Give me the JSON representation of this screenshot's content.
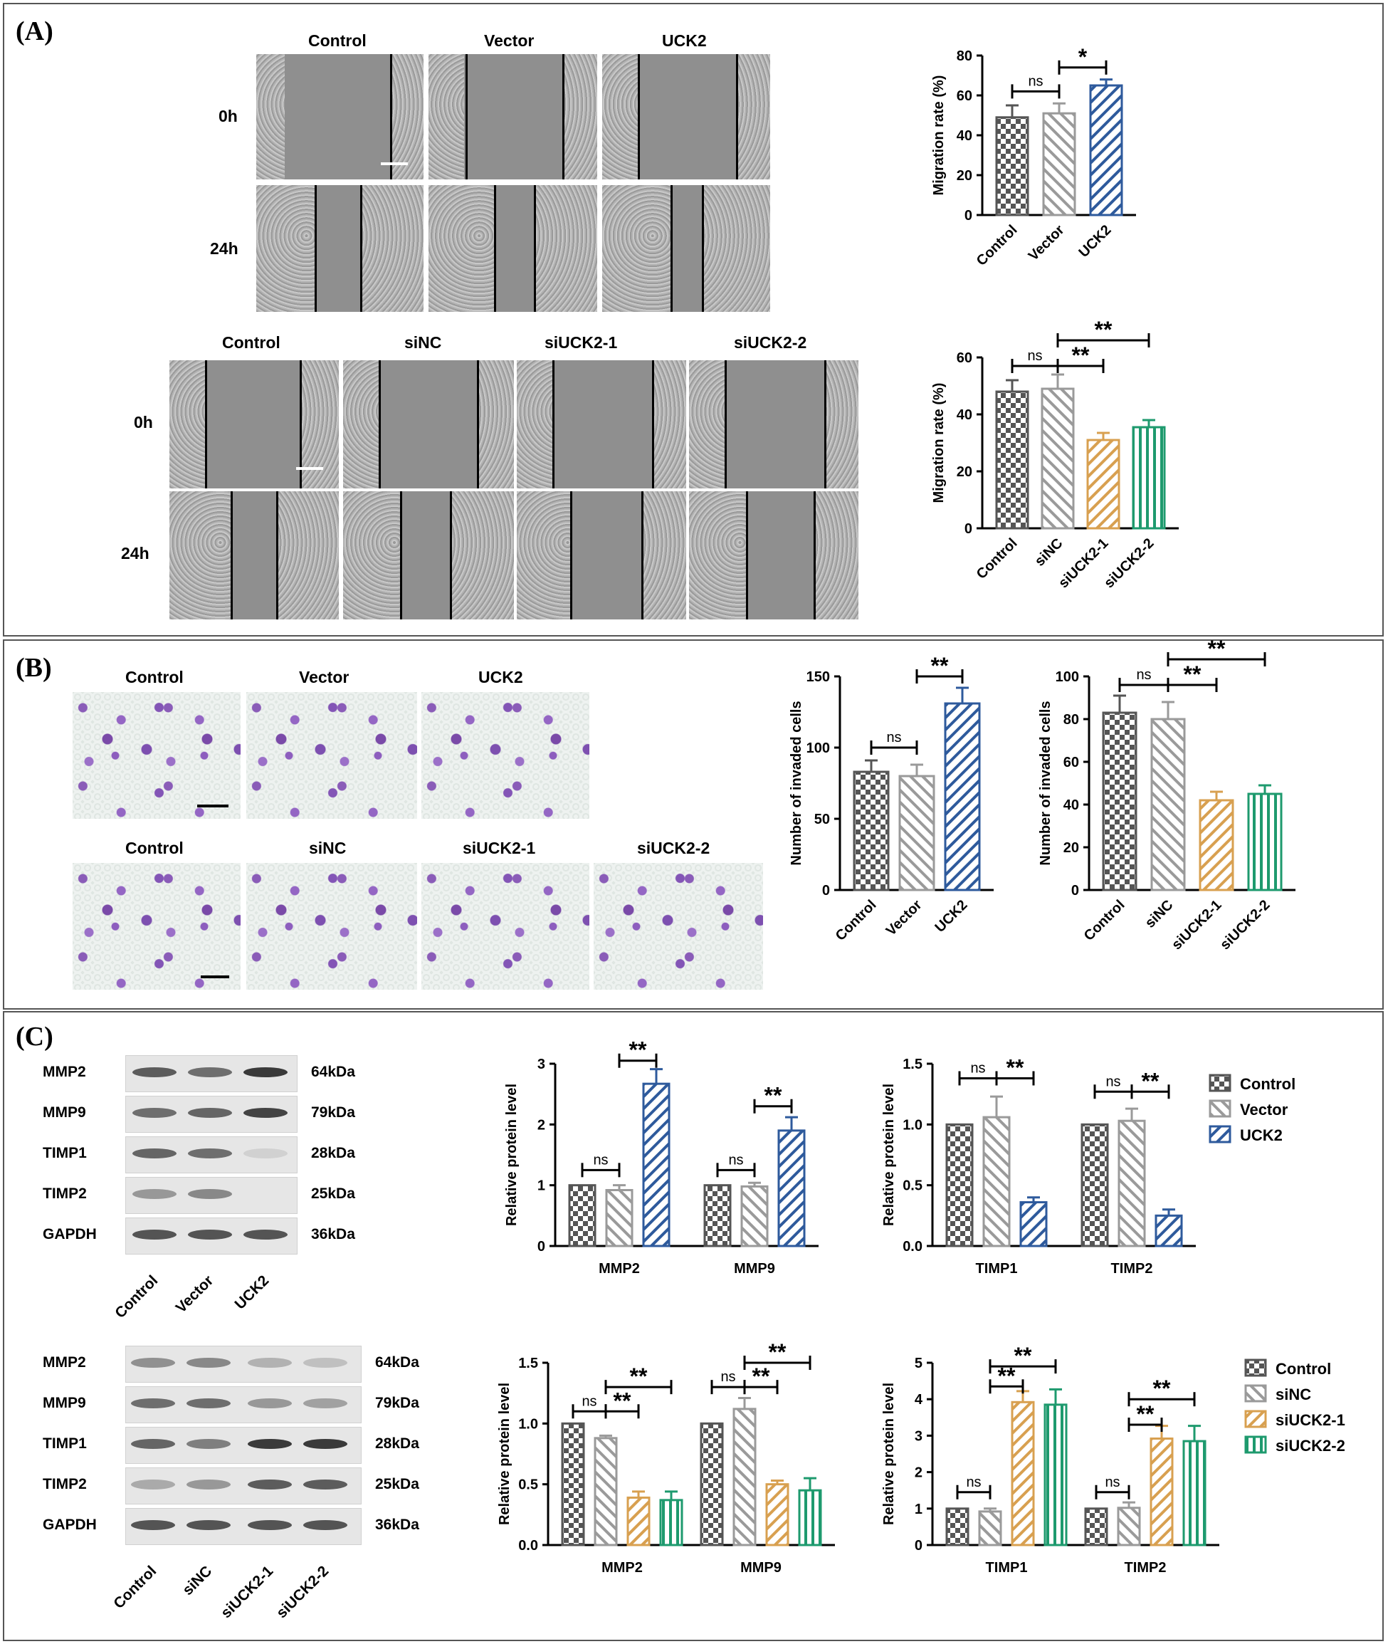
{
  "panels": {
    "a": {
      "label": "(A)",
      "top_cols": [
        "Control",
        "Vector",
        "UCK2"
      ],
      "bottom_cols": [
        "Control",
        "siNC",
        "siUCK2-1",
        "siUCK2-2"
      ],
      "rows": [
        "0h",
        "24h"
      ]
    },
    "b": {
      "label": "(B)",
      "top_cols": [
        "Control",
        "Vector",
        "UCK2"
      ],
      "bottom_cols": [
        "Control",
        "siNC",
        "siUCK2-1",
        "siUCK2-2"
      ]
    },
    "c": {
      "label": "(C)",
      "top_proteins": [
        "MMP2",
        "MMP9",
        "TIMP1",
        "TIMP2",
        "GAPDH"
      ],
      "top_sizes": [
        "64kDa",
        "79kDa",
        "28kDa",
        "25kDa",
        "36kDa"
      ],
      "top_lanes": [
        "Control",
        "Vector",
        "UCK2"
      ],
      "bottom_proteins": [
        "MMP2",
        "MMP9",
        "TIMP1",
        "TIMP2",
        "GAPDH"
      ],
      "bottom_sizes": [
        "64kDa",
        "79kDa",
        "28kDa",
        "25kDa",
        "36kDa"
      ],
      "bottom_lanes": [
        "Control",
        "siNC",
        "siUCK2-1",
        "siUCK2-2"
      ]
    }
  },
  "colors": {
    "control": "#555555",
    "vector": "#9a9a9a",
    "uck2": "#2e5a9c",
    "si1": "#d8a050",
    "si2": "#1e9a6e"
  },
  "chart_data": [
    {
      "id": "a_top",
      "type": "bar",
      "title": "",
      "xlabel": "",
      "ylabel": "Migration rate (%)",
      "ylim": [
        0,
        80
      ],
      "yticks": [
        0,
        20,
        40,
        60,
        80
      ],
      "categories": [
        "Control",
        "Vector",
        "UCK2"
      ],
      "values": [
        49,
        51,
        65
      ],
      "errors": [
        6,
        5,
        3
      ],
      "styles": [
        "control",
        "vector",
        "uck2"
      ],
      "annotations": [
        "ns",
        "*"
      ]
    },
    {
      "id": "a_bottom",
      "type": "bar",
      "title": "",
      "xlabel": "",
      "ylabel": "Migration rate (%)",
      "ylim": [
        0,
        60
      ],
      "yticks": [
        0,
        20,
        40,
        60
      ],
      "categories": [
        "Control",
        "siNC",
        "siUCK2-1",
        "siUCK2-2"
      ],
      "values": [
        48,
        49,
        31,
        35.5
      ],
      "errors": [
        4,
        5,
        2.5,
        2.5
      ],
      "styles": [
        "control",
        "vector",
        "si1",
        "si2"
      ],
      "annotations": [
        "ns",
        "**",
        "**"
      ]
    },
    {
      "id": "b_left",
      "type": "bar",
      "title": "",
      "xlabel": "",
      "ylabel": "Number of invaded cells",
      "ylim": [
        0,
        150
      ],
      "yticks": [
        0,
        50,
        100,
        150
      ],
      "categories": [
        "Control",
        "Vector",
        "UCK2"
      ],
      "values": [
        83,
        80,
        131
      ],
      "errors": [
        8,
        8,
        11
      ],
      "styles": [
        "control",
        "vector",
        "uck2"
      ],
      "annotations": [
        "ns",
        "**"
      ]
    },
    {
      "id": "b_right",
      "type": "bar",
      "title": "",
      "xlabel": "",
      "ylabel": "Number of invaded cells",
      "ylim": [
        0,
        100
      ],
      "yticks": [
        0,
        20,
        40,
        60,
        80,
        100
      ],
      "categories": [
        "Control",
        "siNC",
        "siUCK2-1",
        "siUCK2-2"
      ],
      "values": [
        83,
        80,
        42,
        45
      ],
      "errors": [
        8,
        8,
        4,
        4
      ],
      "styles": [
        "control",
        "vector",
        "si1",
        "si2"
      ],
      "annotations": [
        "ns",
        "**",
        "**"
      ]
    },
    {
      "id": "c_tl",
      "type": "bar",
      "title": "",
      "xlabel": "",
      "ylabel": "Relative protein level",
      "ylim": [
        0,
        3
      ],
      "yticks": [
        0,
        1,
        2,
        3
      ],
      "categories": [
        "MMP2",
        "MMP9"
      ],
      "series": [
        {
          "name": "Control",
          "values": [
            1.0,
            1.0
          ],
          "errors": [
            0,
            0
          ]
        },
        {
          "name": "Vector",
          "values": [
            0.92,
            0.98
          ],
          "errors": [
            0.08,
            0.06
          ]
        },
        {
          "name": "UCK2",
          "values": [
            2.67,
            1.9
          ],
          "errors": [
            0.24,
            0.22
          ]
        }
      ],
      "styles": [
        "control",
        "vector",
        "uck2"
      ],
      "annotations": [
        "ns",
        "**",
        "ns",
        "**"
      ]
    },
    {
      "id": "c_tr",
      "type": "bar",
      "title": "",
      "xlabel": "",
      "ylabel": "Relative protein level",
      "ylim": [
        0,
        1.5
      ],
      "yticks": [
        "0.0",
        "0.5",
        "1.0",
        "1.5"
      ],
      "categories": [
        "TIMP1",
        "TIMP2"
      ],
      "series": [
        {
          "name": "Control",
          "values": [
            1.0,
            1.0
          ],
          "errors": [
            0,
            0
          ]
        },
        {
          "name": "Vector",
          "values": [
            1.06,
            1.03
          ],
          "errors": [
            0.17,
            0.1
          ]
        },
        {
          "name": "UCK2",
          "values": [
            0.36,
            0.25
          ],
          "errors": [
            0.04,
            0.05
          ]
        }
      ],
      "styles": [
        "control",
        "vector",
        "uck2"
      ],
      "legend": [
        "Control",
        "Vector",
        "UCK2"
      ],
      "annotations": [
        "ns",
        "**",
        "ns",
        "**"
      ]
    },
    {
      "id": "c_bl",
      "type": "bar",
      "title": "",
      "xlabel": "",
      "ylabel": "Relative protein level",
      "ylim": [
        0,
        1.5
      ],
      "yticks": [
        "0.0",
        "0.5",
        "1.0",
        "1.5"
      ],
      "categories": [
        "MMP2",
        "MMP9"
      ],
      "series": [
        {
          "name": "Control",
          "values": [
            1.0,
            1.0
          ],
          "errors": [
            0,
            0
          ]
        },
        {
          "name": "siNC",
          "values": [
            0.88,
            1.12
          ],
          "errors": [
            0.02,
            0.09
          ]
        },
        {
          "name": "siUCK2-1",
          "values": [
            0.39,
            0.5
          ],
          "errors": [
            0.05,
            0.03
          ]
        },
        {
          "name": "siUCK2-2",
          "values": [
            0.37,
            0.45
          ],
          "errors": [
            0.07,
            0.1
          ]
        }
      ],
      "styles": [
        "control",
        "vector",
        "si1",
        "si2"
      ],
      "annotations": [
        "ns",
        "**",
        "**",
        "ns",
        "**",
        "**"
      ]
    },
    {
      "id": "c_br",
      "type": "bar",
      "title": "",
      "xlabel": "",
      "ylabel": "Relative protein level",
      "ylim": [
        0,
        5
      ],
      "yticks": [
        0,
        1,
        2,
        3,
        4,
        5
      ],
      "categories": [
        "TIMP1",
        "TIMP2"
      ],
      "series": [
        {
          "name": "Control",
          "values": [
            1.0,
            1.0
          ],
          "errors": [
            0,
            0
          ]
        },
        {
          "name": "siNC",
          "values": [
            0.92,
            1.02
          ],
          "errors": [
            0.08,
            0.15
          ]
        },
        {
          "name": "siUCK2-1",
          "values": [
            3.92,
            2.92
          ],
          "errors": [
            0.3,
            0.35
          ]
        },
        {
          "name": "siUCK2-2",
          "values": [
            3.85,
            2.85
          ],
          "errors": [
            0.42,
            0.42
          ]
        }
      ],
      "styles": [
        "control",
        "vector",
        "si1",
        "si2"
      ],
      "legend": [
        "Control",
        "siNC",
        "siUCK2-1",
        "siUCK2-2"
      ],
      "annotations": [
        "ns",
        "**",
        "**",
        "ns",
        "**",
        "**"
      ]
    }
  ]
}
